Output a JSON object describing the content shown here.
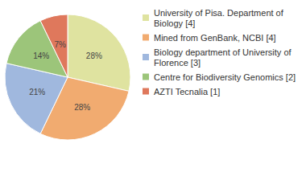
{
  "chart_data": {
    "type": "pie",
    "categories": [
      "University of Pisa. Department of Biology [4]",
      "Mined from GenBank, NCBI [4]",
      "Biology department of University of Florence [3]",
      "Centre for Biodiversity Genomics [2]",
      "AZTI Tecnalia [1]"
    ],
    "values": [
      28,
      28,
      21,
      14,
      7
    ],
    "value_labels": [
      "28%",
      "28%",
      "21%",
      "14%",
      "7%"
    ],
    "colors": [
      "#dfe3a0",
      "#f1ab70",
      "#a0b8de",
      "#9cc57a",
      "#df785c"
    ],
    "data_labels": true,
    "legend": "top-right"
  }
}
